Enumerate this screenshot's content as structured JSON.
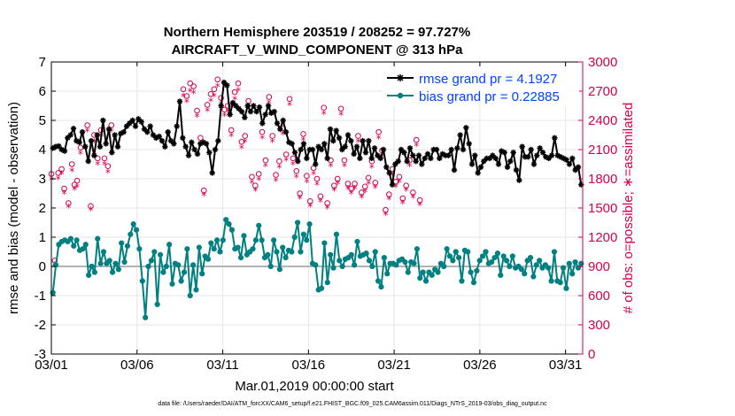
{
  "chart_data": {
    "type": "line",
    "title_line1": "Northern Hemisphere 203519 / 208252 = 97.727%",
    "title_line2": "AIRCRAFT_V_WIND_COMPONENT @ 313 hPa",
    "xlabel": "Mar.01,2019 00:00:00 start",
    "ylabel_left": "rmse and bias (model - observation)",
    "ylabel_right": "# of obs: o=possible; ∗=assimilated",
    "ylim_left": [
      -3,
      7
    ],
    "ylim_right": [
      0,
      3000
    ],
    "xlim_days": [
      1,
      32
    ],
    "x_tick_labels": [
      "03/01",
      "03/06",
      "03/11",
      "03/16",
      "03/21",
      "03/26",
      "03/31"
    ],
    "x_tick_days": [
      1,
      6,
      11,
      16,
      21,
      26,
      31
    ],
    "y_left_ticks": [
      "-3",
      "-2",
      "-1",
      "0",
      "1",
      "2",
      "3",
      "4",
      "5",
      "6",
      "7"
    ],
    "y_right_ticks": [
      "0",
      "300",
      "600",
      "900",
      "1200",
      "1500",
      "1800",
      "2100",
      "2400",
      "2700",
      "3000"
    ],
    "colors": {
      "rmse": "#000000",
      "bias": "#008080",
      "obs": "#d6004e",
      "zero_line": "#b3b3b3",
      "grid": "#e6e6e6",
      "legend_text": "#0044ff"
    },
    "series": [
      {
        "name": "rmse grand pr = 4.1927",
        "axis": "left",
        "values": [
          4.05,
          4.1,
          4.12,
          4.0,
          3.95,
          4.4,
          4.5,
          4.72,
          4.3,
          4.25,
          4.6,
          4.1,
          3.6,
          4.3,
          3.8,
          4.5,
          4.1,
          5.0,
          4.2,
          4.7,
          3.9,
          4.5,
          4.1,
          4.55,
          4.6,
          4.8,
          4.9,
          5.0,
          4.8,
          5.05,
          4.95,
          4.7,
          4.6,
          4.8,
          4.5,
          4.4,
          4.45,
          4.3,
          4.1,
          4.6,
          4.3,
          4.2,
          4.8,
          5.65,
          4.4,
          4.1,
          3.8,
          4.25,
          4.0,
          3.85,
          4.2,
          4.25,
          4.2,
          3.9,
          3.2,
          4.0,
          4.3,
          5.5,
          6.3,
          6.2,
          5.2,
          5.6,
          5.5,
          5.4,
          5.3,
          5.1,
          5.5,
          5.3,
          5.5,
          5.3,
          5.45,
          4.9,
          5.2,
          5.5,
          5.25,
          5.3,
          4.9,
          4.7,
          5.0,
          4.6,
          4.25,
          4.2,
          3.9,
          3.6,
          4.0,
          4.2,
          3.7,
          4.0,
          4.0,
          3.5,
          4.1,
          4.0,
          4.2,
          3.7,
          4.7,
          4.3,
          4.65,
          4.4,
          4.0,
          4.1,
          4.5,
          4.3,
          3.85,
          4.1,
          3.7,
          4.3,
          3.9,
          4.3,
          3.7,
          4.05,
          3.8,
          3.7,
          4.0,
          3.4,
          3.2,
          2.8,
          3.5,
          3.6,
          4.0,
          3.9,
          3.6,
          4.05,
          3.8,
          3.6,
          3.8,
          3.5,
          3.7,
          3.85,
          3.7,
          4.0,
          4.0,
          3.7,
          3.85,
          3.8,
          3.8,
          4.0,
          3.3,
          4.05,
          4.5,
          4.0,
          4.75,
          4.2,
          3.5,
          3.8,
          3.2,
          3.4,
          3.6,
          3.7,
          3.7,
          3.8,
          3.7,
          3.5,
          3.95,
          3.9,
          3.4,
          3.6,
          3.9,
          3.3,
          2.95,
          4.1,
          3.75,
          3.75,
          4.0,
          3.5,
          3.8,
          4.05,
          3.9,
          3.75,
          3.7,
          3.8,
          4.4,
          3.8,
          3.75,
          3.7,
          3.65,
          3.5,
          3.7,
          3.3,
          3.4,
          2.8
        ]
      },
      {
        "name": "bias grand pr = 0.22885",
        "axis": "left",
        "values": [
          -0.9,
          0.05,
          0.75,
          0.85,
          0.9,
          0.85,
          0.95,
          0.7,
          0.9,
          0.55,
          0.6,
          0.75,
          -0.3,
          0.0,
          -0.2,
          0.95,
          0.1,
          0.5,
          0.1,
          0.2,
          -0.2,
          0.1,
          -0.1,
          0.8,
          0.15,
          0.7,
          1.1,
          1.45,
          1.25,
          0.6,
          -0.5,
          -1.75,
          0.0,
          0.2,
          0.5,
          -1.3,
          0.4,
          -0.2,
          0.0,
          0.75,
          -0.6,
          0.1,
          0.05,
          -0.5,
          -0.2,
          0.6,
          -1.0,
          0.05,
          -0.8,
          0.65,
          -0.25,
          0.35,
          0.25,
          0.8,
          0.6,
          0.9,
          0.5,
          0.9,
          1.6,
          1.45,
          1.25,
          0.6,
          0.65,
          0.3,
          1.05,
          0.4,
          0.5,
          0.6,
          0.9,
          1.4,
          0.9,
          0.3,
          0.4,
          0.0,
          0.9,
          0.5,
          -0.1,
          0.65,
          0.3,
          0.55,
          0.5,
          1.0,
          1.5,
          0.5,
          1.1,
          0.9,
          1.45,
          0.1,
          0.05,
          -0.8,
          -0.75,
          0.8,
          -0.55,
          0.4,
          -0.05,
          1.1,
          0.2,
          0.0,
          0.25,
          0.3,
          0.4,
          0.05,
          0.85,
          0.35,
          0.4,
          0.45,
          0.2,
          0.0,
          0.5,
          -0.5,
          -0.7,
          0.3,
          -0.25,
          0.1,
          0.1,
          0.05,
          0.2,
          0.25,
          0.15,
          -0.2,
          0.15,
          0.1,
          0.6,
          -0.4,
          -0.2,
          -0.5,
          -0.2,
          -0.3,
          -0.1,
          -0.2,
          0.1,
          0.0,
          0.6,
          0.35,
          0.2,
          0.5,
          0.3,
          -0.5,
          0.55,
          0.5,
          -0.2,
          -0.55,
          -0.15,
          0.2,
          0.35,
          0.5,
          0.1,
          0.15,
          0.3,
          0.45,
          -0.3,
          0.35,
          0.2,
          0.0,
          0.35,
          -0.05,
          0.0,
          -0.1,
          -0.25,
          0.2,
          0.3,
          -0.35,
          0.05,
          0.2,
          -0.05,
          0.05,
          -0.05,
          -0.5,
          0.5,
          -0.5,
          -0.55,
          -0.05,
          -0.75,
          0.1,
          -0.25,
          0.15,
          -0.05,
          0.1
        ]
      },
      {
        "name": "obs possible",
        "axis": "right",
        "values": [
          1850,
          960,
          1860,
          1900,
          1700,
          1550,
          1950,
          1740,
          1780,
          2120,
          2350,
          1520,
          2250,
          2010,
          2300,
          2010,
          1930,
          2350,
          2720,
          2650,
          2780,
          2750,
          2500,
          2220,
          1680,
          2560,
          2670,
          2720,
          2820,
          2630,
          2510,
          2550,
          2300,
          2690,
          2780,
          2180,
          2240,
          2600,
          1820,
          1730,
          1850,
          2280,
          1990,
          2640,
          2240,
          1840,
          1980,
          2320,
          2050,
          2620,
          2010,
          1880,
          1650,
          2260,
          1830,
          1570,
          1910,
          1800,
          1620,
          2530,
          1550,
          1990,
          1730,
          1800,
          2520,
          1990,
          1750,
          1700,
          1750,
          2240,
          1660,
          1720,
          1810,
          1980,
          1760,
          2280,
          2090,
          1480,
          1640,
          1900,
          1770,
          1820,
          1600,
          1730,
          1990,
          1660,
          2200,
          1580
        ],
        "days": [
          1.0,
          1.2,
          1.4,
          1.6,
          1.75,
          2.0,
          2.2,
          2.35,
          2.5,
          2.7,
          3.1,
          3.3,
          3.5,
          3.7,
          3.9,
          4.1,
          4.3,
          4.5,
          8.7,
          8.9,
          9.1,
          9.3,
          9.5,
          9.7,
          9.9,
          10.1,
          10.3,
          10.5,
          10.7,
          10.9,
          11.1,
          11.3,
          11.5,
          11.7,
          11.9,
          12.1,
          12.3,
          12.5,
          12.7,
          12.9,
          13.1,
          13.3,
          13.5,
          13.7,
          13.9,
          14.1,
          14.3,
          14.5,
          14.7,
          14.9,
          15.1,
          15.3,
          15.5,
          15.7,
          15.9,
          16.1,
          16.3,
          16.5,
          16.7,
          16.9,
          17.1,
          17.3,
          17.5,
          17.7,
          17.9,
          18.1,
          18.3,
          18.5,
          18.7,
          18.9,
          19.1,
          19.3,
          19.5,
          19.7,
          19.9,
          20.1,
          20.3,
          20.5,
          20.7,
          20.9,
          21.1,
          21.3,
          21.5,
          21.7,
          21.9,
          22.1,
          22.3,
          22.5
        ]
      },
      {
        "name": "obs assimilated",
        "axis": "right",
        "values": [
          1790,
          920,
          1800,
          1850,
          1650,
          1510,
          1880,
          1690,
          1720,
          2060,
          2290,
          1480,
          2180,
          1950,
          2240,
          1950,
          1870,
          2290,
          2650,
          2590,
          2700,
          2680,
          2440,
          2160,
          1630,
          2500,
          2600,
          2650,
          2750,
          2570,
          2450,
          2490,
          2240,
          2620,
          2710,
          2120,
          2180,
          2540,
          1760,
          1680,
          1790,
          2220,
          1930,
          2580,
          2180,
          1780,
          1920,
          2260,
          1990,
          2560,
          1950,
          1820,
          1600,
          2200,
          1770,
          1520,
          1850,
          1740,
          1570,
          2470,
          1500,
          1930,
          1680,
          1750,
          2460,
          1930,
          1700,
          1650,
          1700,
          2180,
          1610,
          1670,
          1750,
          1920,
          1710,
          2220,
          2030,
          1430,
          1590,
          1840,
          1720,
          1770,
          1550,
          1680,
          1930,
          1610,
          2140,
          1530
        ]
      }
    ],
    "footer": "data file: /Users/raeder/DAI/ATM_forcXX/CAM6_setup/f.e21.FHIST_BGC.f09_025.CAM6assim.011/Diags_NTrS_2019-03/obs_diag_output.nc"
  }
}
